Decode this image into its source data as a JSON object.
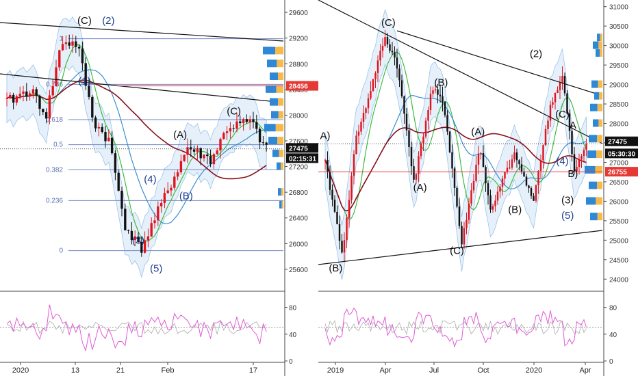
{
  "chart_data": [
    {
      "type": "candlestick",
      "id": "left",
      "x_ticks": [
        "2020",
        "13",
        "21",
        "Feb",
        "17"
      ],
      "y_ticks": [
        25600,
        26000,
        26400,
        26800,
        27200,
        27600,
        28000,
        28400,
        28800,
        29200,
        29600
      ],
      "ylim": [
        25450,
        29750
      ],
      "fib_levels": [
        {
          "label": "1",
          "price": 29190
        },
        {
          "label": "0.786",
          "price": 28480
        },
        {
          "label": "0.618",
          "price": 27930
        },
        {
          "label": "0.5",
          "price": 27540
        },
        {
          "label": "0.382",
          "price": 27150
        },
        {
          "label": "0.236",
          "price": 26670
        },
        {
          "label": "0",
          "price": 25890
        }
      ],
      "wave_labels": [
        {
          "text": "(C)",
          "color": "black",
          "x": 13,
          "y": 29420
        },
        {
          "text": "(2)",
          "color": "blue",
          "x": 17,
          "y": 29420
        },
        {
          "text": "(1)",
          "color": "blue",
          "x": 13,
          "y": 28480
        },
        {
          "text": "(A)",
          "color": "black",
          "x": 29,
          "y": 27640
        },
        {
          "text": "(B)",
          "color": "blue",
          "x": 30,
          "y": 26690
        },
        {
          "text": "(C)",
          "color": "black",
          "x": 38,
          "y": 28010
        },
        {
          "text": "(4)",
          "color": "blue",
          "x": 24,
          "y": 26950
        },
        {
          "text": "(3)",
          "color": "blue",
          "x": 22,
          "y": 26000
        },
        {
          "text": "(5)",
          "color": "blue",
          "x": 25,
          "y": 25560
        }
      ],
      "price_tags": [
        {
          "value": "28456",
          "color": "#e53935",
          "price": 28456
        },
        {
          "value": "27475",
          "color": "#111111",
          "price": 27490
        },
        {
          "value": "02:15:31",
          "color": "#111111",
          "price": 27330
        }
      ],
      "rsi": {
        "y_ticks": [
          0,
          40,
          80
        ],
        "ylim": [
          0,
          100
        ]
      }
    },
    {
      "type": "candlestick",
      "id": "right",
      "x_ticks": [
        "2019",
        "Apr",
        "Jul",
        "Oct",
        "2020",
        "Apr"
      ],
      "y_ticks": [
        24000,
        24500,
        25000,
        25500,
        26000,
        26500,
        27000,
        27500,
        28000,
        28500,
        29000,
        29500,
        30000,
        30500,
        31000
      ],
      "ylim": [
        23900,
        31100
      ],
      "wave_labels": [
        {
          "text": "A)",
          "color": "black",
          "x": 0,
          "y": 27600
        },
        {
          "text": "(C)",
          "color": "black",
          "x": 12,
          "y": 30500
        },
        {
          "text": "(B)",
          "color": "black",
          "x": 22,
          "y": 28970
        },
        {
          "text": "(A)",
          "color": "black",
          "x": 18,
          "y": 26270
        },
        {
          "text": "(A)",
          "color": "black",
          "x": 29,
          "y": 27700
        },
        {
          "text": "(B)",
          "color": "black",
          "x": 36,
          "y": 25700
        },
        {
          "text": "(C)",
          "color": "black",
          "x": 25,
          "y": 24650
        },
        {
          "text": "(B)",
          "color": "black",
          "x": 2,
          "y": 24200
        },
        {
          "text": "(2)",
          "color": "black",
          "x": 40,
          "y": 29700
        },
        {
          "text": "(C)",
          "color": "black",
          "x": 45,
          "y": 28150
        },
        {
          "text": "A",
          "color": "black",
          "x": 47,
          "y": 27870
        },
        {
          "text": "(4)",
          "color": "blue",
          "x": 45,
          "y": 26950
        },
        {
          "text": "B)",
          "color": "black",
          "x": 47,
          "y": 26620
        },
        {
          "text": "(3)",
          "color": "black",
          "x": 46,
          "y": 25950
        },
        {
          "text": "(5)",
          "color": "blue",
          "x": 46,
          "y": 25550
        }
      ],
      "price_tags": [
        {
          "value": "27475",
          "color": "#111111",
          "price": 27540
        },
        {
          "value": "05:30:30",
          "color": "#111111",
          "price": 27230
        },
        {
          "value": "26755",
          "color": "#e53935",
          "price": 26760
        }
      ],
      "rsi": {
        "y_ticks": [
          0,
          40,
          80
        ],
        "ylim": [
          0,
          100
        ]
      }
    }
  ]
}
